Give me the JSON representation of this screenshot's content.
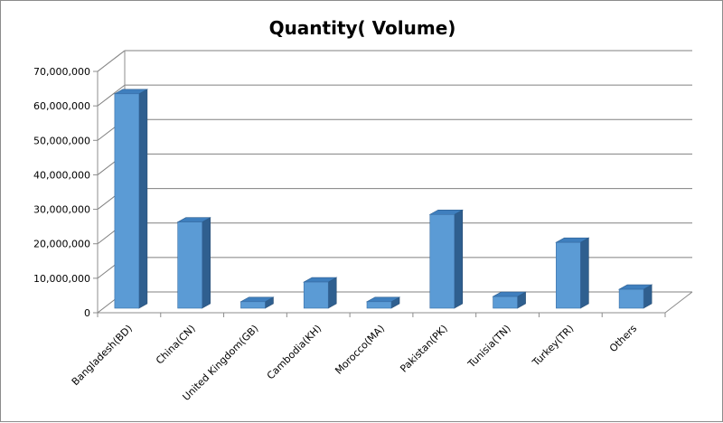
{
  "chart_data": {
    "type": "bar",
    "title": "Quantity( Volume)",
    "xlabel": "",
    "ylabel": "",
    "categories": [
      "Bangladesh(BD)",
      "China(CN)",
      "United Kingdom(GB)",
      "Cambodia(KH)",
      "Morocco(MA)",
      "Pakistan(PK)",
      "Tunisia(TN)",
      "Turkey(TR)",
      "Others"
    ],
    "values": [
      63500000,
      26300000,
      3200000,
      8900000,
      3200000,
      28500000,
      4700000,
      20400000,
      6800000
    ],
    "ylim": [
      0,
      70000000
    ],
    "yticks": [
      "0",
      "10,000,000",
      "20,000,000",
      "30,000,000",
      "40,000,000",
      "50,000,000",
      "60,000,000",
      "70,000,000"
    ],
    "grid": true,
    "style": "3d-clustered-column",
    "colors": {
      "bar_front": "#5B9BD5",
      "bar_side": "#2F5F8F",
      "bar_top": "#3F7FBE",
      "grid": "#808080",
      "wall": "#8c8c8c"
    }
  }
}
